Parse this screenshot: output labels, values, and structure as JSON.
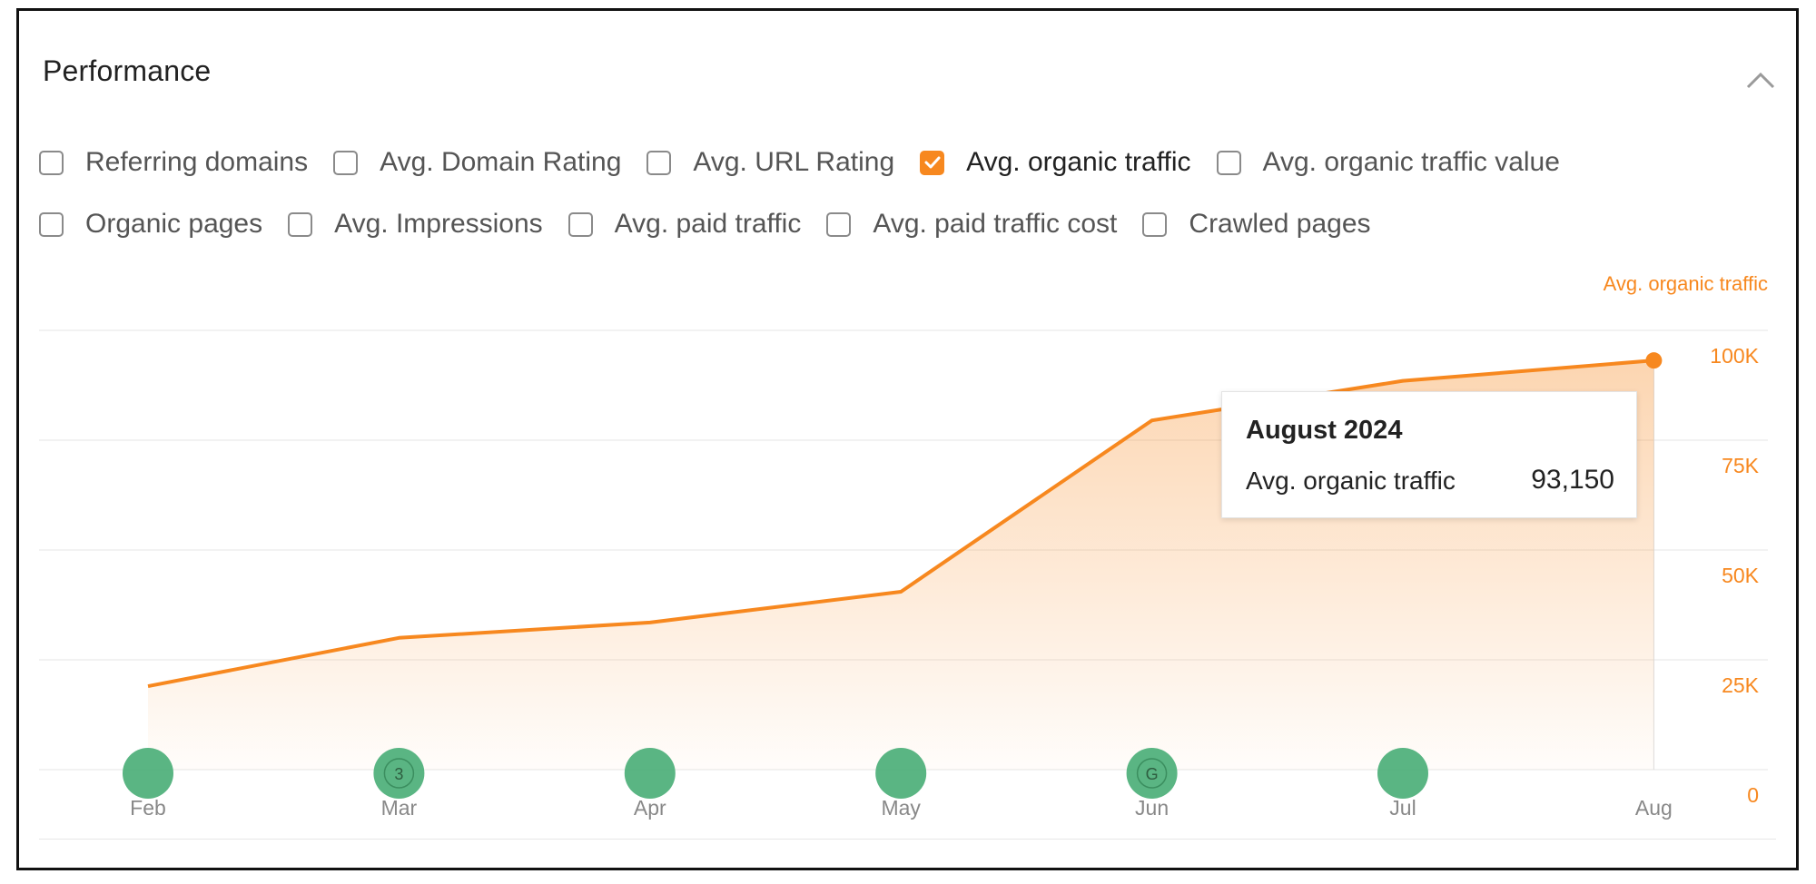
{
  "panel": {
    "title": "Performance"
  },
  "checkboxes": {
    "row1": [
      {
        "label": "Referring domains",
        "checked": false
      },
      {
        "label": "Avg. Domain Rating",
        "checked": false
      },
      {
        "label": "Avg. URL Rating",
        "checked": false
      },
      {
        "label": "Avg. organic traffic",
        "checked": true
      },
      {
        "label": "Avg. organic traffic value",
        "checked": false
      }
    ],
    "row2": [
      {
        "label": "Organic pages",
        "checked": false
      },
      {
        "label": "Avg. Impressions",
        "checked": false
      },
      {
        "label": "Avg. paid traffic",
        "checked": false
      },
      {
        "label": "Avg. paid traffic cost",
        "checked": false
      },
      {
        "label": "Crawled pages",
        "checked": false
      }
    ]
  },
  "colors": {
    "accent": "#f7881f",
    "marker": "#4caf78",
    "grid": "#e6e6e6"
  },
  "chart_data": {
    "type": "area",
    "ylabel": "Avg. organic traffic",
    "categories": [
      "Feb",
      "Mar",
      "Apr",
      "May",
      "Jun",
      "Jul",
      "Aug"
    ],
    "series": [
      {
        "name": "Avg. organic traffic",
        "values": [
          19000,
          30000,
          33500,
          40500,
          79500,
          88500,
          93150
        ]
      }
    ],
    "y_ticks": [
      {
        "value": 0,
        "label": "0"
      },
      {
        "value": 25000,
        "label": "25K"
      },
      {
        "value": 50000,
        "label": "50K"
      },
      {
        "value": 75000,
        "label": "75K"
      },
      {
        "value": 100000,
        "label": "100K"
      }
    ],
    "ylim": [
      0,
      100000
    ],
    "grid": true,
    "markers": [
      {
        "category": "Feb",
        "label": ""
      },
      {
        "category": "Mar",
        "label": "3"
      },
      {
        "category": "Apr",
        "label": ""
      },
      {
        "category": "May",
        "label": ""
      },
      {
        "category": "Jun",
        "label": "G"
      },
      {
        "category": "Jul",
        "label": ""
      }
    ],
    "tooltip": {
      "title": "August 2024",
      "label": "Avg. organic traffic",
      "value": "93,150"
    }
  }
}
